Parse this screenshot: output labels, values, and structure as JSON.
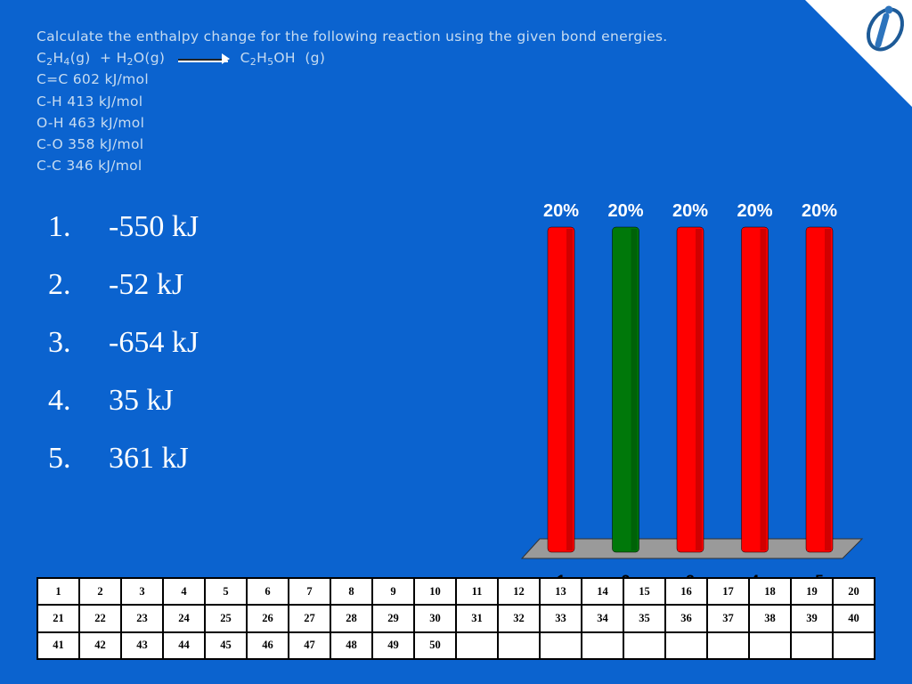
{
  "question": {
    "prompt": "Calculate the enthalpy change for the following reaction using the given bond energies.",
    "reaction": {
      "reactant1": {
        "c": "C",
        "c_sub": "2",
        "h": "H",
        "h_sub": "4",
        "state": "(g)"
      },
      "plus": "+",
      "reactant2": {
        "h": "H",
        "h_sub": "2",
        "o": "O",
        "state": "(g)"
      },
      "product": {
        "c": "C",
        "c_sub": "2",
        "h": "H",
        "h_sub": "5",
        "rest": "OH",
        "state": "(g)"
      }
    },
    "bond_energies": [
      "C=C 602 kJ/mol",
      "C-H 413 kJ/mol",
      "O-H 463 kJ/mol",
      "C-O 358 kJ/mol",
      "C-C 346 kJ/mol"
    ]
  },
  "answers": [
    {
      "num": "1.",
      "text": "-550 kJ"
    },
    {
      "num": "2.",
      "text": "-52 kJ"
    },
    {
      "num": "3.",
      "text": "-654 kJ"
    },
    {
      "num": "4.",
      "text": "35 kJ"
    },
    {
      "num": "5.",
      "text": "361 kJ"
    }
  ],
  "chart_data": {
    "type": "bar",
    "categories": [
      "1",
      "2",
      "3",
      "4",
      "5"
    ],
    "values": [
      20,
      20,
      20,
      20,
      20
    ],
    "value_labels": [
      "20%",
      "20%",
      "20%",
      "20%",
      "20%"
    ],
    "highlight_index": 1,
    "ylim": [
      0,
      20
    ],
    "grid": false
  },
  "colors": {
    "background": "#0b63cf",
    "bar": "#ff0000",
    "bar_correct": "#00780a",
    "question_text": "#c7dcf1",
    "answer_text": "#ffffff"
  },
  "response_grid": {
    "rows": [
      [
        "1",
        "2",
        "3",
        "4",
        "5",
        "6",
        "7",
        "8",
        "9",
        "10",
        "11",
        "12",
        "13",
        "14",
        "15",
        "16",
        "17",
        "18",
        "19",
        "20"
      ],
      [
        "21",
        "22",
        "23",
        "24",
        "25",
        "26",
        "27",
        "28",
        "29",
        "30",
        "31",
        "32",
        "33",
        "34",
        "35",
        "36",
        "37",
        "38",
        "39",
        "40"
      ],
      [
        "41",
        "42",
        "43",
        "44",
        "45",
        "46",
        "47",
        "48",
        "49",
        "50",
        "",
        "",
        "",
        "",
        "",
        "",
        "",
        "",
        "",
        ""
      ]
    ]
  },
  "logo": {
    "icon": "turningpoint-logo-icon"
  }
}
